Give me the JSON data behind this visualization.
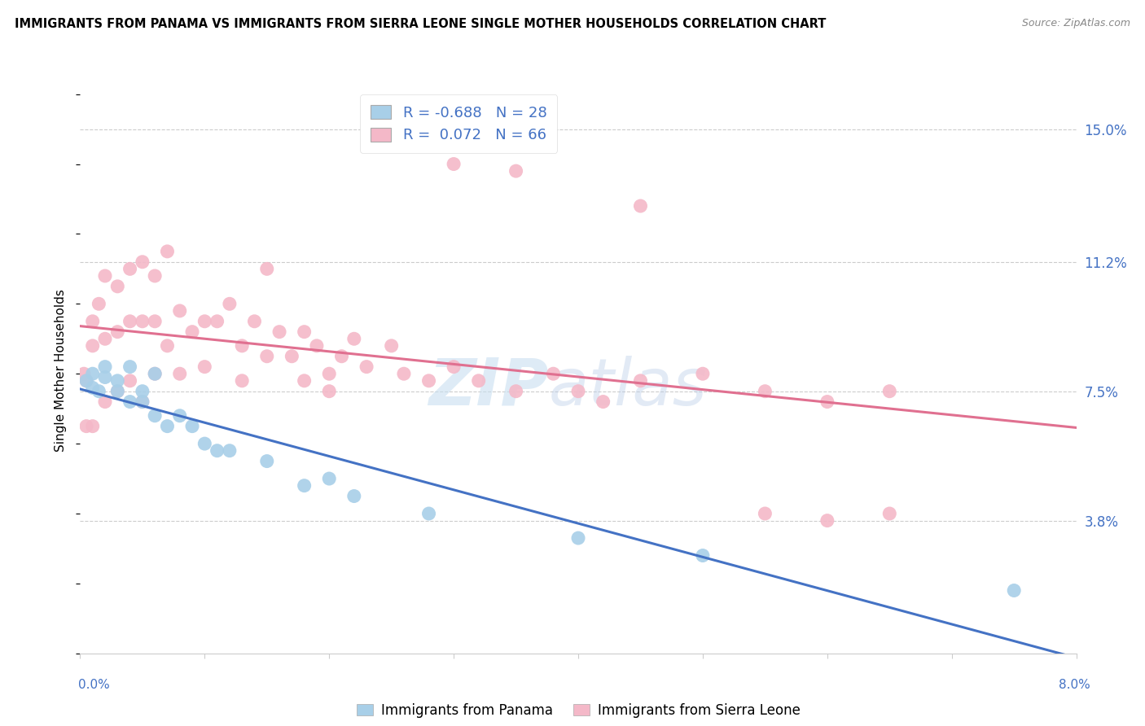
{
  "title": "IMMIGRANTS FROM PANAMA VS IMMIGRANTS FROM SIERRA LEONE SINGLE MOTHER HOUSEHOLDS CORRELATION CHART",
  "source": "Source: ZipAtlas.com",
  "ylabel": "Single Mother Households",
  "ytick_labels": [
    "15.0%",
    "11.2%",
    "7.5%",
    "3.8%"
  ],
  "ytick_values": [
    0.15,
    0.112,
    0.075,
    0.038
  ],
  "xlim": [
    0.0,
    0.08
  ],
  "ylim": [
    0.0,
    0.162
  ],
  "color_panama": "#a8cfe8",
  "color_sierra": "#f4b8c8",
  "line_color_panama": "#4472c4",
  "line_color_sierra": "#e07090",
  "watermark_zip": "ZIP",
  "watermark_atlas": "atlas",
  "panama_x": [
    0.0005,
    0.001,
    0.001,
    0.0015,
    0.002,
    0.002,
    0.003,
    0.003,
    0.004,
    0.004,
    0.005,
    0.005,
    0.006,
    0.006,
    0.007,
    0.008,
    0.009,
    0.01,
    0.011,
    0.012,
    0.015,
    0.018,
    0.02,
    0.022,
    0.028,
    0.04,
    0.05,
    0.075
  ],
  "panama_y": [
    0.078,
    0.08,
    0.076,
    0.075,
    0.082,
    0.079,
    0.078,
    0.075,
    0.072,
    0.082,
    0.075,
    0.072,
    0.08,
    0.068,
    0.065,
    0.068,
    0.065,
    0.06,
    0.058,
    0.058,
    0.055,
    0.048,
    0.05,
    0.045,
    0.04,
    0.033,
    0.028,
    0.018
  ],
  "sierra_x": [
    0.0003,
    0.0005,
    0.0005,
    0.001,
    0.001,
    0.001,
    0.0015,
    0.002,
    0.002,
    0.002,
    0.003,
    0.003,
    0.003,
    0.004,
    0.004,
    0.004,
    0.005,
    0.005,
    0.005,
    0.006,
    0.006,
    0.006,
    0.007,
    0.007,
    0.008,
    0.008,
    0.009,
    0.01,
    0.01,
    0.011,
    0.012,
    0.013,
    0.013,
    0.014,
    0.015,
    0.015,
    0.016,
    0.017,
    0.018,
    0.018,
    0.019,
    0.02,
    0.02,
    0.021,
    0.022,
    0.023,
    0.025,
    0.026,
    0.028,
    0.03,
    0.032,
    0.035,
    0.038,
    0.04,
    0.042,
    0.045,
    0.05,
    0.055,
    0.06,
    0.065,
    0.03,
    0.035,
    0.045,
    0.055,
    0.06,
    0.065
  ],
  "sierra_y": [
    0.08,
    0.078,
    0.065,
    0.095,
    0.088,
    0.065,
    0.1,
    0.108,
    0.09,
    0.072,
    0.105,
    0.092,
    0.075,
    0.11,
    0.095,
    0.078,
    0.112,
    0.095,
    0.072,
    0.108,
    0.095,
    0.08,
    0.115,
    0.088,
    0.098,
    0.08,
    0.092,
    0.095,
    0.082,
    0.095,
    0.1,
    0.088,
    0.078,
    0.095,
    0.11,
    0.085,
    0.092,
    0.085,
    0.092,
    0.078,
    0.088,
    0.08,
    0.075,
    0.085,
    0.09,
    0.082,
    0.088,
    0.08,
    0.078,
    0.082,
    0.078,
    0.075,
    0.08,
    0.075,
    0.072,
    0.078,
    0.08,
    0.075,
    0.072,
    0.075,
    0.14,
    0.138,
    0.128,
    0.04,
    0.038,
    0.04
  ]
}
